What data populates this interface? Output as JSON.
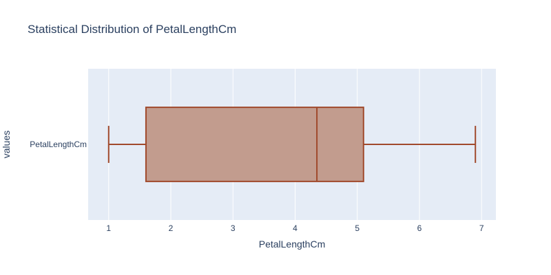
{
  "chart_data": {
    "type": "box",
    "title": "Statistical Distribution of PetalLengthCm",
    "xlabel": "PetalLengthCm",
    "ylabel": "values",
    "orientation": "horizontal",
    "categories": [
      "PetalLengthCm"
    ],
    "xlim": [
      0.67,
      7.23
    ],
    "xticks": [
      1,
      2,
      3,
      4,
      5,
      6,
      7
    ],
    "grid": true,
    "legend": "none",
    "series": [
      {
        "category": "PetalLengthCm",
        "min": 1.0,
        "q1": 1.6,
        "median": 4.35,
        "q3": 5.1,
        "max": 6.9
      }
    ],
    "colors": {
      "box_fill": "#c29c8e",
      "box_line": "#a0492b",
      "plot_bg": "#e5ecf6",
      "grid": "#ffffff",
      "text": "#2a3f5f"
    }
  }
}
